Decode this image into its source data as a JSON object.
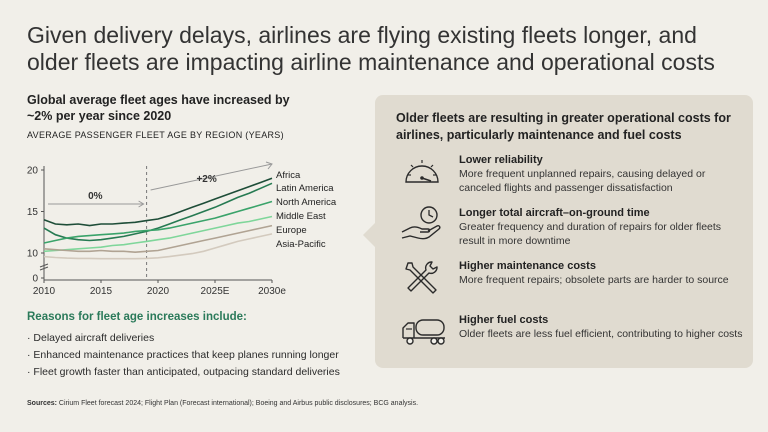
{
  "title": "Given delivery delays, airlines are flying existing fleets longer, and older fleets are impacting airline maintenance and operational costs",
  "left_heading": "Global average fleet ages have increased by ~2% per year since 2020",
  "chart_label": "AVERAGE PASSENGER FLEET AGE BY REGION (YEARS)",
  "chart_data": {
    "type": "line",
    "title": "AVERAGE PASSENGER FLEET AGE BY REGION (YEARS)",
    "x_tick_labels": [
      "2010",
      "2015",
      "2020",
      "2025E",
      "2030e"
    ],
    "x": [
      2010,
      2011,
      2012,
      2013,
      2014,
      2015,
      2016,
      2017,
      2018,
      2019,
      2020,
      2021,
      2022,
      2023,
      2024,
      2025,
      2026,
      2027,
      2028,
      2029,
      2030
    ],
    "xlim": [
      2010,
      2030
    ],
    "y_ticks": [
      0,
      10,
      15,
      20
    ],
    "ylim": [
      0,
      20
    ],
    "axis_break": true,
    "divider_x": 2019,
    "annotations": [
      "0%",
      "+2%"
    ],
    "series": [
      {
        "name": "Africa",
        "color": "#1e4d38",
        "values": [
          14.0,
          13.5,
          13.4,
          13.5,
          13.3,
          13.5,
          13.5,
          13.6,
          13.7,
          13.9,
          14.1,
          14.5,
          15.0,
          15.5,
          16.0,
          16.5,
          17.0,
          17.5,
          18.0,
          18.5,
          19.0
        ]
      },
      {
        "name": "Latin America",
        "color": "#267a52",
        "values": [
          13.0,
          12.2,
          11.8,
          11.6,
          11.5,
          11.6,
          11.8,
          12.0,
          12.3,
          12.6,
          13.0,
          13.5,
          14.0,
          14.5,
          15.0,
          15.5,
          16.1,
          16.7,
          17.2,
          17.8,
          18.4
        ]
      },
      {
        "name": "North America",
        "color": "#3aa36a",
        "values": [
          11.2,
          11.5,
          11.8,
          12.0,
          12.1,
          12.2,
          12.3,
          12.4,
          12.6,
          12.7,
          12.8,
          13.0,
          13.3,
          13.6,
          13.9,
          14.2,
          14.6,
          15.0,
          15.4,
          15.8,
          16.2
        ]
      },
      {
        "name": "Middle East",
        "color": "#7fd69a",
        "values": [
          10.2,
          10.3,
          10.4,
          10.5,
          10.6,
          10.7,
          10.9,
          11.0,
          11.2,
          11.4,
          11.6,
          11.8,
          12.1,
          12.4,
          12.7,
          13.0,
          13.3,
          13.6,
          13.8,
          14.1,
          14.4
        ]
      },
      {
        "name": "Europe",
        "color": "#b0a393",
        "values": [
          10.5,
          10.4,
          10.3,
          10.2,
          10.2,
          10.3,
          10.2,
          10.2,
          10.1,
          10.2,
          10.3,
          10.6,
          10.9,
          11.2,
          11.5,
          11.8,
          12.1,
          12.4,
          12.7,
          13.0,
          13.3
        ]
      },
      {
        "name": "Asia-Pacific",
        "color": "#d3cabe",
        "values": [
          8.8,
          8.5,
          8.3,
          8.2,
          8.2,
          8.1,
          8.1,
          8.1,
          8.1,
          8.2,
          8.4,
          8.8,
          9.3,
          9.8,
          10.2,
          10.6,
          11.0,
          11.4,
          11.7,
          12.0,
          12.3
        ]
      }
    ]
  },
  "reasons": {
    "heading": "Reasons for fleet age increases include:",
    "items": [
      "· Delayed aircraft deliveries",
      "· Enhanced maintenance practices that keep planes running longer",
      "· Fleet growth faster than anticipated, outpacing standard deliveries"
    ]
  },
  "panel": {
    "heading": "Older fleets are resulting in greater operational costs for airlines, particularly maintenance and fuel costs",
    "items": [
      {
        "icon": "gauge-icon",
        "title": "Lower reliability",
        "desc": "More frequent unplanned repairs, causing delayed or canceled flights and passenger dissatisfaction"
      },
      {
        "icon": "clock-hand-icon",
        "title": "Longer total aircraft–on-ground time",
        "desc": "Greater frequency and duration of repairs for older fleets result in more downtime"
      },
      {
        "icon": "tools-icon",
        "title": "Higher maintenance costs",
        "desc": "More frequent repairs; obsolete parts are harder to source"
      },
      {
        "icon": "fuel-truck-icon",
        "title": "Higher fuel costs",
        "desc": "Older fleets are less fuel efficient, contributing to higher costs"
      }
    ]
  },
  "sources": {
    "label": "Sources:",
    "text": " Cirium Fleet forecast 2024; Flight Plan (Forecast international); Boeing and Airbus public disclosures; BCG analysis."
  }
}
